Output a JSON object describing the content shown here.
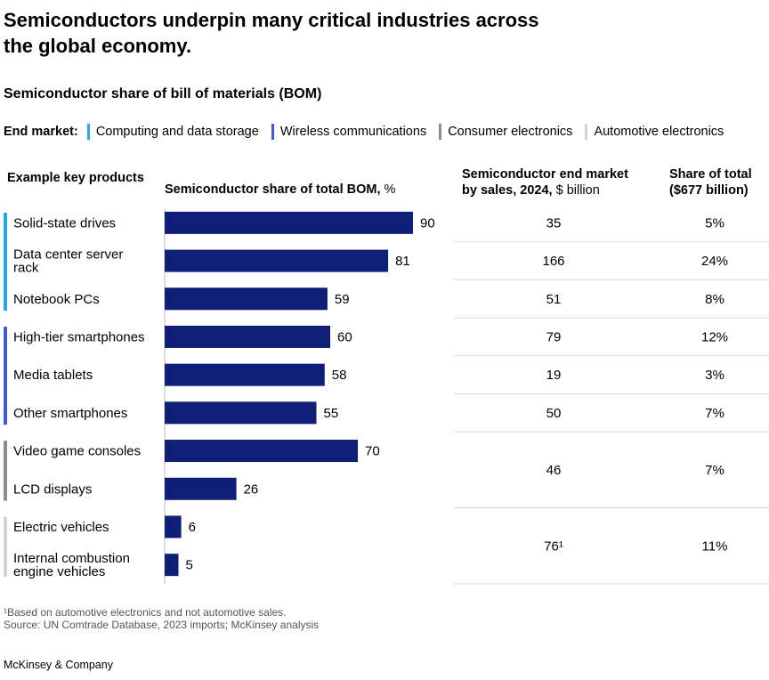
{
  "header": {
    "title_line1": "Semiconductors underpin many critical industries across",
    "title_line2": "the global economy.",
    "subtitle": "Semiconductor share of bill of materials (BOM)"
  },
  "legend": {
    "label": "End market:",
    "items": [
      {
        "name": "Computing and data storage",
        "color": "#29a8e0"
      },
      {
        "name": "Wireless communications",
        "color": "#3d5ad9"
      },
      {
        "name": "Consumer electronics",
        "color": "#8c8c8c"
      },
      {
        "name": "Automotive electronics",
        "color": "#d4d4d4"
      }
    ]
  },
  "columns": {
    "products": "Example key products",
    "bom_bold": "Semiconductor share of total BOM,",
    "bom_unit": " %",
    "sales_line1": "Semiconductor end market",
    "sales_line2_bold": "by sales, 2024,",
    "sales_line2_unit": " $ billion",
    "share_line1": "Share of total",
    "share_line2": "($677 billion)"
  },
  "chart_data": {
    "type": "bar",
    "orientation": "horizontal",
    "title": "Semiconductor share of bill of materials (BOM)",
    "xlabel": "Semiconductor share of total BOM, %",
    "xlim": [
      0,
      100
    ],
    "bar_color": "#0f1f78",
    "categories": [
      [
        "Solid-state drives"
      ],
      [
        "Data center server",
        "rack"
      ],
      [
        "Notebook PCs"
      ],
      [
        "High-tier smartphones"
      ],
      [
        "Media tablets"
      ],
      [
        "Other smartphones"
      ],
      [
        "Video game consoles"
      ],
      [
        "LCD displays"
      ],
      [
        "Electric vehicles"
      ],
      [
        "Internal combustion",
        "engine vehicles"
      ]
    ],
    "values": [
      90,
      81,
      59,
      60,
      58,
      55,
      70,
      26,
      6,
      5
    ],
    "end_market_groups": [
      {
        "name": "Computing and data storage",
        "rows": [
          0,
          2
        ],
        "color": "#29a8e0"
      },
      {
        "name": "Wireless communications",
        "rows": [
          3,
          5
        ],
        "color": "#3d5ad9"
      },
      {
        "name": "Consumer electronics",
        "rows": [
          6,
          7
        ],
        "color": "#8c8c8c"
      },
      {
        "name": "Automotive electronics",
        "rows": [
          8,
          9
        ],
        "color": "#d4d4d4"
      }
    ],
    "sales_table": [
      {
        "rows": [
          0,
          0
        ],
        "sales": "35",
        "share": "5%"
      },
      {
        "rows": [
          1,
          1
        ],
        "sales": "166",
        "share": "24%"
      },
      {
        "rows": [
          2,
          2
        ],
        "sales": "51",
        "share": "8%"
      },
      {
        "rows": [
          3,
          3
        ],
        "sales": "79",
        "share": "12%"
      },
      {
        "rows": [
          4,
          4
        ],
        "sales": "19",
        "share": "3%"
      },
      {
        "rows": [
          5,
          5
        ],
        "sales": "50",
        "share": "7%"
      },
      {
        "rows": [
          6,
          7
        ],
        "sales": "46",
        "share": "7%"
      },
      {
        "rows": [
          8,
          9
        ],
        "sales": "76¹",
        "share": "11%"
      }
    ]
  },
  "footnotes": {
    "note1": "¹Based on automotive electronics and not automotive sales.",
    "source": "Source: UN Comtrade Database, 2023 imports; McKinsey analysis"
  },
  "brand": "McKinsey & Company"
}
